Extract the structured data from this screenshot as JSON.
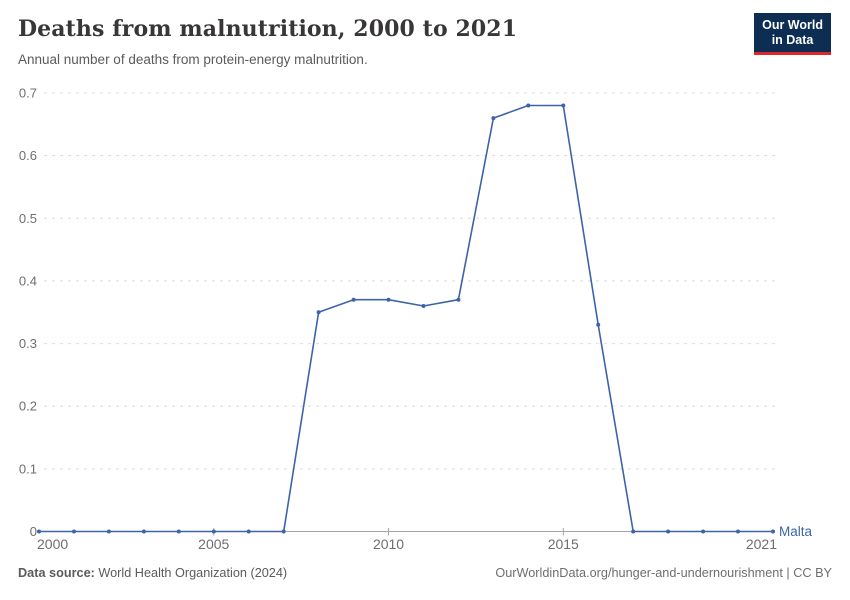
{
  "header": {
    "title": "Deaths from malnutrition, 2000 to 2021",
    "subtitle": "Annual number of deaths from protein-energy malnutrition.",
    "logo": {
      "line1": "Our World",
      "line2": "in Data",
      "bg_color": "#0d2d52",
      "accent_color": "#e0262d"
    }
  },
  "chart_data": {
    "type": "line",
    "title": "Deaths from malnutrition, 2000 to 2021",
    "subtitle": "Annual number of deaths from protein-energy malnutrition.",
    "x": [
      2000,
      2001,
      2002,
      2003,
      2004,
      2005,
      2006,
      2007,
      2008,
      2009,
      2010,
      2011,
      2012,
      2013,
      2014,
      2015,
      2016,
      2017,
      2018,
      2019,
      2020,
      2021
    ],
    "series": [
      {
        "name": "Malta",
        "color": "#3d64a8",
        "values": [
          0,
          0,
          0,
          0,
          0,
          0,
          0,
          0,
          0.35,
          0.37,
          0.37,
          0.36,
          0.37,
          0.66,
          0.68,
          0.68,
          0.33,
          0,
          0,
          0,
          0,
          0
        ]
      }
    ],
    "xlabel": "",
    "ylabel": "",
    "ylim": [
      0,
      0.7
    ],
    "yticks": [
      0,
      0.1,
      0.2,
      0.3,
      0.4,
      0.5,
      0.6,
      0.7
    ],
    "xticks": [
      2000,
      2005,
      2010,
      2015,
      2021
    ],
    "grid": "horizontal-dashed",
    "legend_position": "end-of-line-label",
    "colors": {
      "gridline": "#dcdcdc",
      "axis_line": "#a5a5a5",
      "tick_label": "#6e6e6e"
    }
  },
  "footer": {
    "source_label": "Data source:",
    "source_value": " World Health Organization (2024)",
    "link": "OurWorldinData.org/hunger-and-undernourishment",
    "license": " | CC BY"
  }
}
